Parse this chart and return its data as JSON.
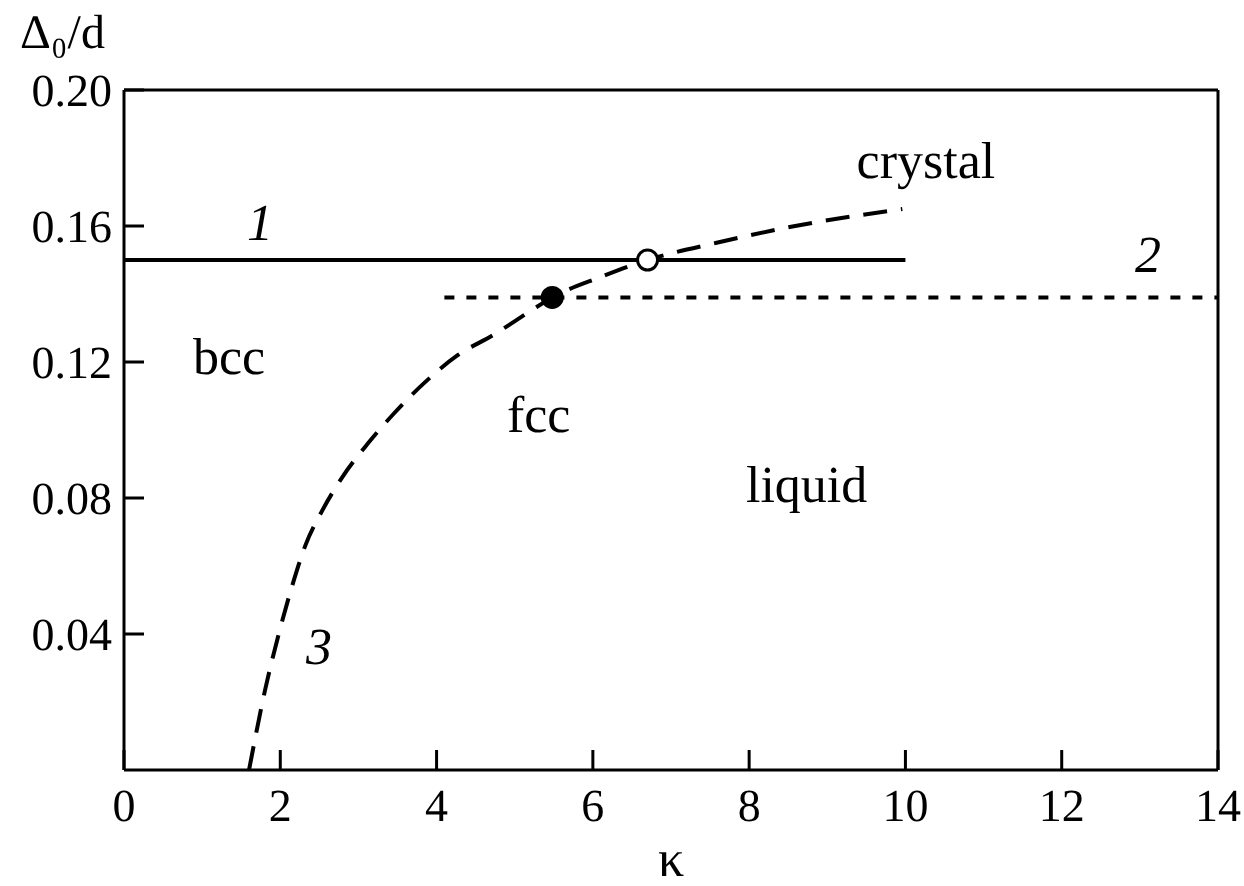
{
  "chart_data": {
    "type": "line",
    "xlabel": "κ",
    "ylabel": "Δ₀/d",
    "xlim": [
      0,
      14
    ],
    "xticks": [
      0,
      2,
      4,
      6,
      8,
      10,
      12,
      14
    ],
    "ylim": [
      0,
      0.2
    ],
    "yticks": [
      0.04,
      0.08,
      0.12,
      0.16,
      {
        "value": 0.2,
        "label": "0.20"
      }
    ],
    "grid": false,
    "annotations": [
      "crystal",
      "bcc",
      "fcc",
      "liquid"
    ],
    "series": [
      {
        "name": "1",
        "color": "#000000",
        "line_style": "solid",
        "x": [
          0,
          10
        ],
        "values": [
          0.15,
          0.15
        ]
      },
      {
        "name": "2",
        "color": "#000000",
        "line_style": "dotted",
        "x": [
          4.1,
          14
        ],
        "values": [
          0.139,
          0.139
        ]
      },
      {
        "name": "3",
        "color": "#000000",
        "line_style": "dashed",
        "x": [
          1.6,
          1.81,
          1.98,
          2.15,
          2.32,
          2.53,
          2.79,
          3.12,
          3.46,
          3.85,
          4.27,
          4.73,
          5.2,
          5.48,
          6.1,
          6.7,
          7.57,
          8.59,
          9.96
        ],
        "values": [
          0,
          0.024,
          0.04,
          0.054,
          0.066,
          0.076,
          0.086,
          0.096,
          0.105,
          0.114,
          0.122,
          0.128,
          0.135,
          0.139,
          0.145,
          0.15,
          0.155,
          0.16,
          0.165
        ]
      },
      {
        "type": "scatter",
        "marker": "circle",
        "color": "#000000",
        "colors": [
          "#000000",
          "#ffffff"
        ],
        "x": [
          5.48,
          6.7
        ],
        "values": [
          0.139,
          0.15
        ]
      }
    ]
  }
}
